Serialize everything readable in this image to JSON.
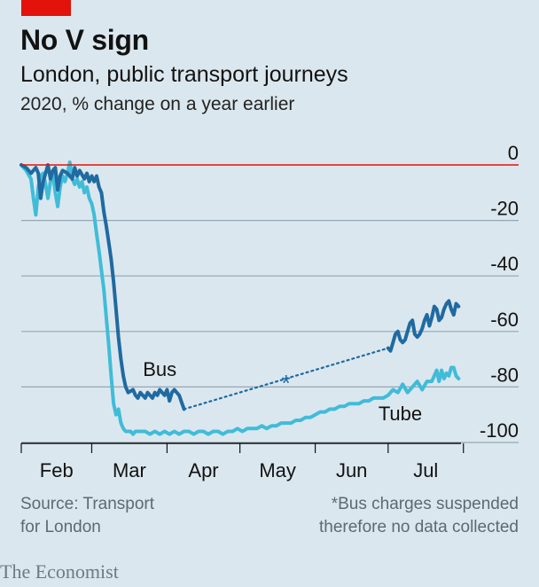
{
  "header": {
    "title": "No V sign",
    "subtitle": "London, public transport journeys",
    "caption": "2020, % change on a year earlier"
  },
  "footer": {
    "source_line1": "Source: Transport",
    "source_line2": "for London",
    "note_line1": "*Bus charges suspended",
    "note_line2": "therefore no data collected",
    "brand": "The Economist"
  },
  "colors": {
    "background": "#dbe7ee",
    "bus": "#1f6aa1",
    "tube": "#40bcd8",
    "zero_line": "#e3120b",
    "grid": "#93a7b3",
    "brand_tab": "#e3120b"
  },
  "chart_data": {
    "type": "line",
    "x_unit": "day of 2020 (from Feb 1)",
    "xlim": [
      1,
      182
    ],
    "ylim": [
      -100,
      0
    ],
    "yticks": [
      0,
      -20,
      -40,
      -60,
      -80,
      -100
    ],
    "ytick_labels": [
      "0",
      "-20",
      "-40",
      "-60",
      "-80",
      "-100"
    ],
    "xtick_labels": [
      "Feb",
      "Mar",
      "Apr",
      "May",
      "Jun",
      "Jul"
    ],
    "xtick_month_starts": [
      1,
      30,
      61,
      91,
      122,
      152,
      183
    ],
    "zero_line": true,
    "grid": true,
    "series": [
      {
        "name": "Bus",
        "points": [
          [
            1,
            0
          ],
          [
            3,
            -1
          ],
          [
            5,
            -3
          ],
          [
            7,
            -1
          ],
          [
            8,
            -3
          ],
          [
            9,
            -12
          ],
          [
            10,
            -6
          ],
          [
            11,
            -3
          ],
          [
            12,
            0
          ],
          [
            13,
            -5
          ],
          [
            14,
            -2
          ],
          [
            15,
            -1
          ],
          [
            16,
            -9
          ],
          [
            17,
            -4
          ],
          [
            18,
            -2
          ],
          [
            20,
            -3
          ],
          [
            22,
            -5
          ],
          [
            23,
            -1
          ],
          [
            24,
            -4
          ],
          [
            25,
            -2
          ],
          [
            27,
            -5
          ],
          [
            28,
            -3
          ],
          [
            29,
            -6
          ],
          [
            30,
            -4
          ],
          [
            31,
            -6
          ],
          [
            32,
            -4
          ],
          [
            33,
            -8
          ],
          [
            34,
            -10
          ],
          [
            35,
            -17
          ],
          [
            36,
            -22
          ],
          [
            37,
            -28
          ],
          [
            38,
            -34
          ],
          [
            39,
            -42
          ],
          [
            40,
            -52
          ],
          [
            41,
            -62
          ],
          [
            42,
            -70
          ],
          [
            43,
            -76
          ],
          [
            44,
            -80
          ],
          [
            45,
            -82
          ],
          [
            47,
            -81
          ],
          [
            48,
            -83
          ],
          [
            49,
            -84
          ],
          [
            50,
            -82
          ],
          [
            51,
            -83
          ],
          [
            52,
            -84
          ],
          [
            53,
            -82
          ],
          [
            54,
            -83
          ],
          [
            55,
            -84
          ],
          [
            56,
            -82
          ],
          [
            57,
            -83
          ],
          [
            58,
            -81
          ],
          [
            59,
            -82
          ],
          [
            60,
            -83
          ],
          [
            61,
            -81
          ],
          [
            62,
            -85
          ],
          [
            63,
            -82
          ],
          [
            64,
            -81
          ],
          [
            65,
            -82
          ],
          [
            66,
            -83
          ],
          [
            68,
            -88
          ]
        ],
        "dotted_gap": {
          "from": [
            68,
            -88
          ],
          "to": [
            152,
            -66
          ],
          "label": "*"
        },
        "points_after_gap": [
          [
            152,
            -66
          ],
          [
            153,
            -67
          ],
          [
            154,
            -64
          ],
          [
            155,
            -61
          ],
          [
            156,
            -60
          ],
          [
            157,
            -63
          ],
          [
            158,
            -64
          ],
          [
            159,
            -63
          ],
          [
            160,
            -60
          ],
          [
            161,
            -57
          ],
          [
            162,
            -56
          ],
          [
            163,
            -61
          ],
          [
            164,
            -62
          ],
          [
            165,
            -61
          ],
          [
            166,
            -59
          ],
          [
            167,
            -56
          ],
          [
            168,
            -54
          ],
          [
            169,
            -58
          ],
          [
            170,
            -55
          ],
          [
            171,
            -51
          ],
          [
            172,
            -52
          ],
          [
            173,
            -56
          ],
          [
            174,
            -55
          ],
          [
            175,
            -52
          ],
          [
            176,
            -50
          ],
          [
            177,
            -49
          ],
          [
            178,
            -52
          ],
          [
            179,
            -54
          ],
          [
            180,
            -50
          ],
          [
            181,
            -51
          ]
        ]
      },
      {
        "name": "Tube",
        "points": [
          [
            1,
            0
          ],
          [
            3,
            -2
          ],
          [
            5,
            -5
          ],
          [
            6,
            -12
          ],
          [
            7,
            -18
          ],
          [
            8,
            -8
          ],
          [
            9,
            -4
          ],
          [
            10,
            -3
          ],
          [
            11,
            -7
          ],
          [
            12,
            -12
          ],
          [
            13,
            -6
          ],
          [
            14,
            -3
          ],
          [
            15,
            -10
          ],
          [
            16,
            -15
          ],
          [
            17,
            -8
          ],
          [
            18,
            -4
          ],
          [
            19,
            -6
          ],
          [
            20,
            -3
          ],
          [
            21,
            1
          ],
          [
            22,
            -5
          ],
          [
            23,
            -7
          ],
          [
            24,
            -5
          ],
          [
            25,
            -8
          ],
          [
            26,
            -6
          ],
          [
            27,
            -10
          ],
          [
            28,
            -8
          ],
          [
            29,
            -12
          ],
          [
            30,
            -14
          ],
          [
            31,
            -18
          ],
          [
            32,
            -25
          ],
          [
            33,
            -31
          ],
          [
            34,
            -38
          ],
          [
            35,
            -45
          ],
          [
            36,
            -55
          ],
          [
            37,
            -65
          ],
          [
            38,
            -76
          ],
          [
            39,
            -86
          ],
          [
            40,
            -90
          ],
          [
            41,
            -88
          ],
          [
            42,
            -93
          ],
          [
            43,
            -95
          ],
          [
            44,
            -96
          ],
          [
            46,
            -96
          ],
          [
            47,
            -97
          ],
          [
            48,
            -96
          ],
          [
            50,
            -96
          ],
          [
            52,
            -96
          ],
          [
            54,
            -97
          ],
          [
            56,
            -96
          ],
          [
            58,
            -97
          ],
          [
            60,
            -96
          ],
          [
            62,
            -97
          ],
          [
            64,
            -96
          ],
          [
            66,
            -97
          ],
          [
            68,
            -96
          ],
          [
            70,
            -96
          ],
          [
            72,
            -97
          ],
          [
            74,
            -96
          ],
          [
            76,
            -96
          ],
          [
            78,
            -97
          ],
          [
            80,
            -96
          ],
          [
            82,
            -96
          ],
          [
            84,
            -97
          ],
          [
            86,
            -96
          ],
          [
            88,
            -96
          ],
          [
            90,
            -95
          ],
          [
            92,
            -96
          ],
          [
            94,
            -95
          ],
          [
            96,
            -95
          ],
          [
            98,
            -95
          ],
          [
            100,
            -94
          ],
          [
            102,
            -95
          ],
          [
            104,
            -94
          ],
          [
            106,
            -94
          ],
          [
            108,
            -93
          ],
          [
            110,
            -93
          ],
          [
            112,
            -93
          ],
          [
            114,
            -92
          ],
          [
            116,
            -92
          ],
          [
            118,
            -91
          ],
          [
            120,
            -91
          ],
          [
            122,
            -90
          ],
          [
            124,
            -89
          ],
          [
            126,
            -89
          ],
          [
            128,
            -88
          ],
          [
            130,
            -88
          ],
          [
            132,
            -87
          ],
          [
            134,
            -87
          ],
          [
            136,
            -86
          ],
          [
            138,
            -86
          ],
          [
            140,
            -86
          ],
          [
            142,
            -85
          ],
          [
            144,
            -85
          ],
          [
            146,
            -84
          ],
          [
            148,
            -84
          ],
          [
            150,
            -84
          ],
          [
            152,
            -83
          ],
          [
            154,
            -81
          ],
          [
            156,
            -82
          ],
          [
            158,
            -79
          ],
          [
            160,
            -82
          ],
          [
            162,
            -80
          ],
          [
            164,
            -78
          ],
          [
            166,
            -81
          ],
          [
            168,
            -78
          ],
          [
            170,
            -78
          ],
          [
            172,
            -74
          ],
          [
            173,
            -78
          ],
          [
            174,
            -74
          ],
          [
            175,
            -77
          ],
          [
            176,
            -75
          ],
          [
            177,
            -76
          ],
          [
            178,
            -73
          ],
          [
            179,
            -73
          ],
          [
            180,
            -76
          ],
          [
            181,
            -77
          ]
        ]
      }
    ],
    "annotations": [
      {
        "text": "Bus",
        "series": "Bus"
      },
      {
        "text": "Tube",
        "series": "Tube"
      },
      {
        "text": "*",
        "series": "Bus"
      }
    ]
  }
}
